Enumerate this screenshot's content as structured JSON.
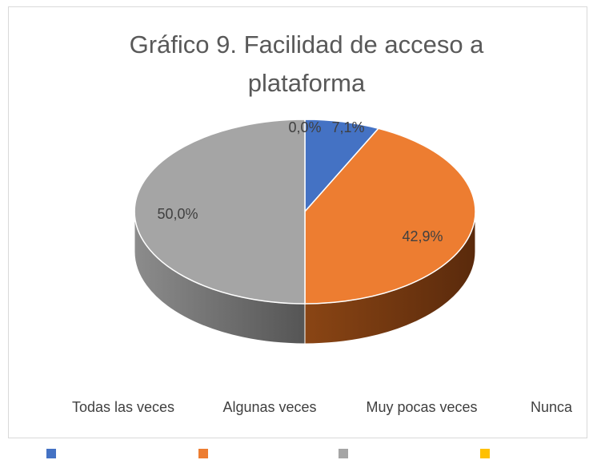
{
  "chart_data": {
    "type": "pie3d",
    "title": "Gráfico 9. Facilidad de acceso a plataforma",
    "categories": [
      "Todas las veces",
      "Algunas veces",
      "Muy pocas veces",
      "Nunca"
    ],
    "values": [
      7.1,
      42.9,
      50.0,
      0.0
    ],
    "value_labels": [
      "7,1%",
      "42,9%",
      "50,0%",
      "0,0%"
    ],
    "colors": [
      "#4472c4",
      "#ed7d31",
      "#a5a5a5",
      "#ffc000"
    ]
  }
}
